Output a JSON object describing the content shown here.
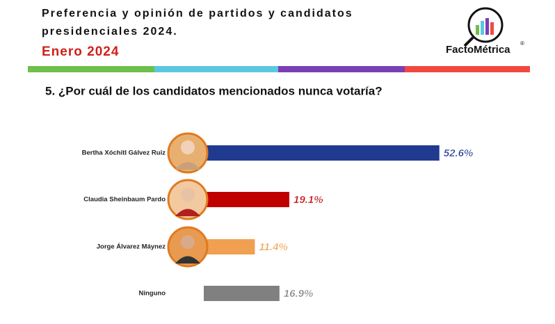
{
  "chart_data": {
    "type": "bar",
    "title": [
      "Preferencia y opinión de partidos y candidatos",
      "presidenciales 2024."
    ],
    "subtitle": "Enero 2024",
    "logo": "FactoMétrica",
    "logo_mark": "®",
    "question": "5. ¿Por cuál de los candidatos mencionados nunca votaría?",
    "orientation": "horizontal",
    "categories": [
      "Bertha Xóchitl Gálvez Ruiz",
      "Claudia Sheinbaum Pardo",
      "Jorge Álvarez Máynez",
      "Ninguno"
    ],
    "values": [
      52.6,
      19.1,
      11.4,
      16.9
    ],
    "value_labels": [
      "52.6%",
      "19.1%",
      "11.4%",
      "16.9%"
    ],
    "colors": [
      "#1f3a8f",
      "#c00000",
      "#f0a050",
      "#808080"
    ]
  }
}
